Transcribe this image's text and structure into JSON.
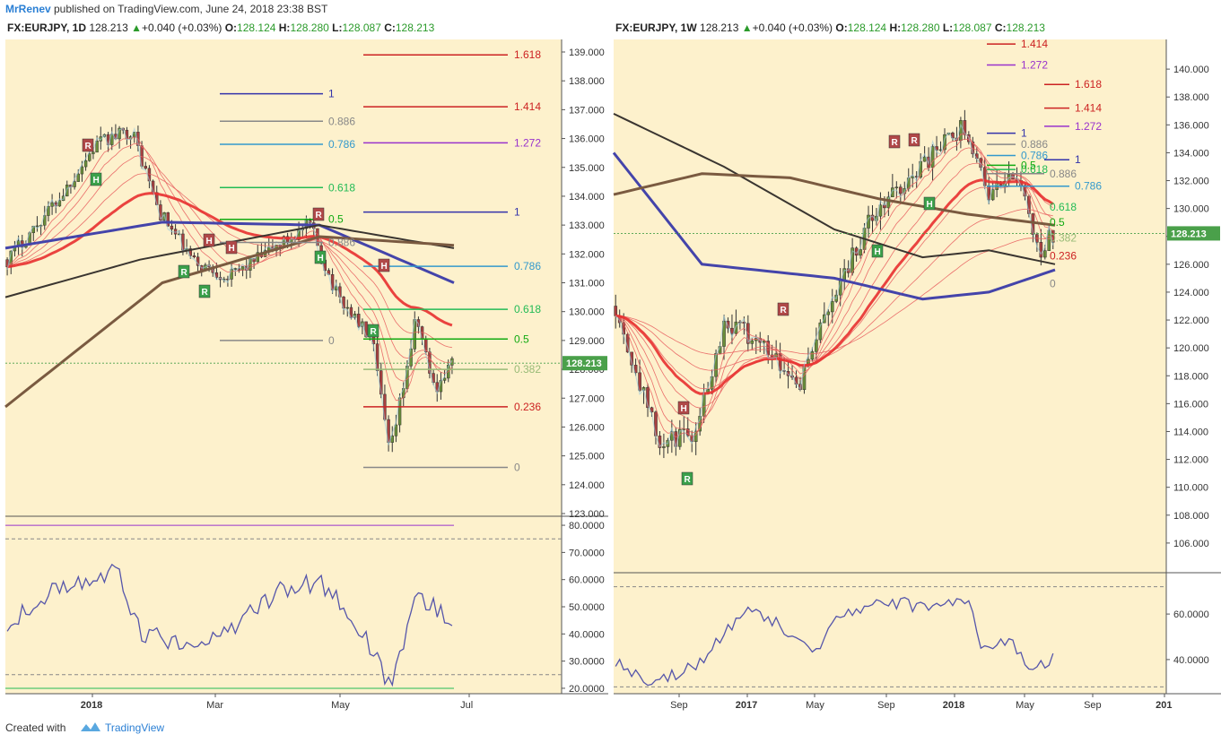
{
  "header": {
    "user": "MrRenev",
    "published": "published on TradingView.com, June 24, 2018 23:38 BST"
  },
  "footer": {
    "created": "Created with",
    "brand": "TradingView"
  },
  "colors": {
    "bg": "#fdf1cc",
    "up": "#6a8f3a",
    "down": "#a84040",
    "fib_red": "#cc2222",
    "fib_blue": "#3333aa",
    "fib_purple": "#9933cc",
    "fib_gray": "#888888",
    "fib_lightblue": "#3399cc",
    "fib_green": "#22bb55",
    "ma_blue": "#4444aa",
    "ma_brown": "#7a5a40",
    "ma_dark": "#3a3530",
    "rsi": "#5555aa",
    "price_badge": "#4aa04a"
  },
  "chart_data": [
    {
      "type": "candlestick",
      "symbol": "FX:EURJPY",
      "timeframe": "1D",
      "ohlc_header": {
        "price": "128.213",
        "change": "+0.040 (+0.03%)",
        "O": "128.124",
        "H": "128.280",
        "L": "128.087",
        "C": "128.213"
      },
      "last_price": "128.213",
      "ylim": [
        123,
        139
      ],
      "yticks": [
        "139.000",
        "138.000",
        "137.000",
        "136.000",
        "135.000",
        "134.000",
        "133.000",
        "132.000",
        "131.000",
        "130.000",
        "129.000",
        "128.000",
        "127.000",
        "126.000",
        "125.000",
        "124.000",
        "123.000"
      ],
      "xticks": [
        "2018",
        "Mar",
        "May",
        "Jul"
      ],
      "fib_levels": [
        {
          "label": "1.618",
          "value": 138.9,
          "color": "#cc2222"
        },
        {
          "label": "1.414",
          "value": 137.1,
          "color": "#cc2222"
        },
        {
          "label": "1.272",
          "value": 135.85,
          "color": "#9933cc"
        },
        {
          "label": "1",
          "value": 133.45,
          "color": "#3333aa"
        },
        {
          "label": "0.786",
          "value": 131.57,
          "color": "#3399cc"
        },
        {
          "label": "0.618",
          "value": 130.08,
          "color": "#22bb55"
        },
        {
          "label": "0.5",
          "value": 129.05,
          "color": "#11aa11"
        },
        {
          "label": "0.382",
          "value": 128.0,
          "color": "#99bb77"
        },
        {
          "label": "0.236",
          "value": 126.7,
          "color": "#cc2222"
        },
        {
          "label": "0",
          "value": 124.6,
          "color": "#888888"
        }
      ],
      "fib_levels_upper": [
        {
          "label": "1",
          "value": 137.55,
          "color": "#3333aa"
        },
        {
          "label": "0.886",
          "value": 136.6,
          "color": "#888888"
        },
        {
          "label": "0.786",
          "value": 135.8,
          "color": "#3399cc"
        },
        {
          "label": "0.618",
          "value": 134.3,
          "color": "#22bb55"
        },
        {
          "label": "0.5",
          "value": 133.2,
          "color": "#11aa11"
        },
        {
          "label": "0.886",
          "value": 132.4,
          "color": "#888888"
        },
        {
          "label": "0",
          "value": 129.0,
          "color": "#888888"
        }
      ],
      "markers": [
        {
          "t": "R",
          "type": "down"
        },
        {
          "t": "H",
          "type": "up"
        },
        {
          "t": "R",
          "type": "up"
        },
        {
          "t": "R",
          "type": "up"
        },
        {
          "t": "H",
          "type": "down"
        },
        {
          "t": "H",
          "type": "down"
        },
        {
          "t": "R",
          "type": "down"
        },
        {
          "t": "H",
          "type": "up"
        },
        {
          "t": "H",
          "type": "down"
        },
        {
          "t": "R",
          "type": "up"
        }
      ],
      "rsi": {
        "ylim": [
          18,
          82
        ],
        "yticks": [
          "80.0000",
          "70.0000",
          "60.0000",
          "50.0000",
          "40.0000",
          "30.0000",
          "20.0000"
        ]
      }
    },
    {
      "type": "candlestick",
      "symbol": "FX:EURJPY",
      "timeframe": "1W",
      "ohlc_header": {
        "price": "128.213",
        "change": "+0.040 (+0.03%)",
        "O": "128.124",
        "H": "128.280",
        "L": "128.087",
        "C": "128.213"
      },
      "last_price": "128.213",
      "ylim": [
        104,
        142
      ],
      "yticks": [
        "140.000",
        "138.000",
        "136.000",
        "134.000",
        "132.000",
        "130.000",
        "128.000",
        "126.000",
        "124.000",
        "122.000",
        "120.000",
        "118.000",
        "116.000",
        "114.000",
        "112.000",
        "110.000",
        "108.000",
        "106.000"
      ],
      "xticks": [
        "Sep",
        "2017",
        "May",
        "Sep",
        "2018",
        "May",
        "Sep",
        "201"
      ],
      "fib_levels": [
        {
          "label": "1.414",
          "value": 141.8,
          "color": "#cc2222"
        },
        {
          "label": "1.272",
          "value": 140.3,
          "color": "#9933cc"
        },
        {
          "label": "1.618",
          "value": 138.9,
          "color": "#cc2222"
        },
        {
          "label": "1",
          "value": 135.4,
          "color": "#3333aa"
        },
        {
          "label": "0.886",
          "value": 134.6,
          "color": "#888888"
        },
        {
          "label": "1.414",
          "value": 137.2,
          "color": "#cc2222"
        },
        {
          "label": "0.786",
          "value": 133.8,
          "color": "#3399cc"
        },
        {
          "label": "1.272",
          "value": 135.9,
          "color": "#9933cc"
        },
        {
          "label": "0.618",
          "value": 132.8,
          "color": "#22bb55"
        },
        {
          "label": "1",
          "value": 133.5,
          "color": "#3333aa"
        },
        {
          "label": "0.5",
          "value": 133.1,
          "color": "#11aa11"
        },
        {
          "label": "0.886",
          "value": 132.5,
          "color": "#888888"
        },
        {
          "label": "0.786",
          "value": 131.6,
          "color": "#3399cc"
        },
        {
          "label": "0.618",
          "value": 130.1,
          "color": "#22bb55"
        },
        {
          "label": "0.5",
          "value": 129.0,
          "color": "#11aa11"
        },
        {
          "label": "0.382",
          "value": 127.9,
          "color": "#99bb77"
        },
        {
          "label": "0.236",
          "value": 126.6,
          "color": "#cc2222"
        },
        {
          "label": "0",
          "value": 124.6,
          "color": "#888888"
        }
      ],
      "rsi": {
        "ylim": [
          25,
          75
        ],
        "yticks": [
          "60.0000",
          "40.0000"
        ]
      }
    }
  ]
}
